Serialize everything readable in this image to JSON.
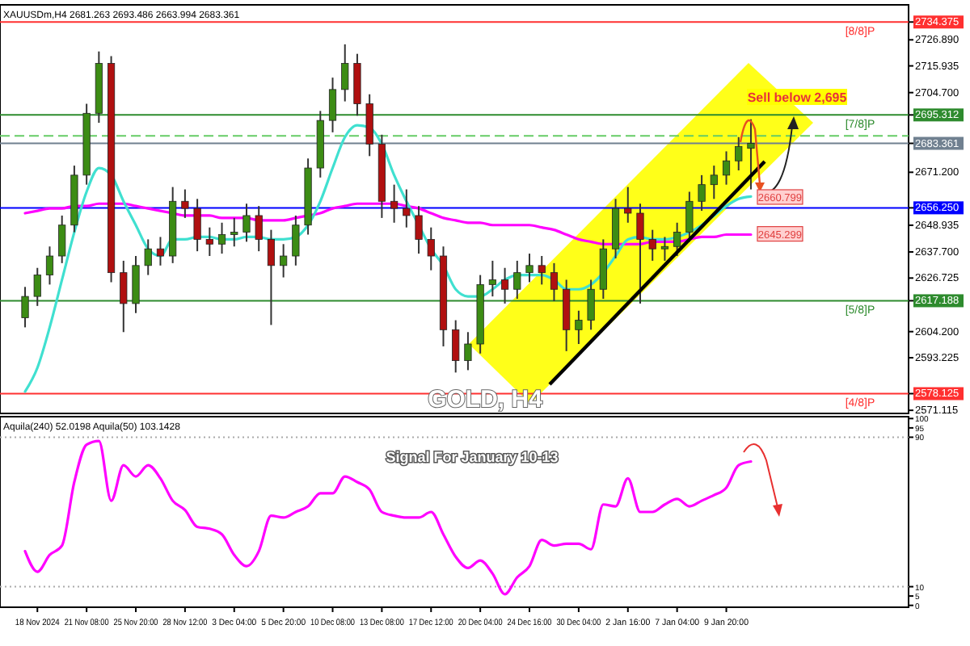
{
  "chart_data": [
    {
      "type": "candlestick",
      "title": "GOLD, H4",
      "subtitle": "Signal For January 10-13",
      "categories": [
        null,
        null,
        null,
        null,
        null,
        null,
        null,
        null,
        null,
        null,
        null,
        null,
        null,
        null,
        null,
        null,
        null,
        null,
        null,
        null,
        null,
        null,
        null,
        null,
        null,
        null,
        null,
        null,
        null,
        null,
        null,
        null,
        null,
        null,
        null,
        null,
        null,
        null,
        null,
        null,
        null,
        null,
        null,
        null,
        null,
        null,
        null,
        null,
        null,
        null,
        null,
        null,
        null,
        null,
        null,
        null,
        null,
        null,
        null,
        null
      ],
      "ohlc": [
        [
          2610,
          2623,
          2606,
          2619
        ],
        [
          2619,
          2631,
          2615,
          2628
        ],
        [
          2628,
          2640,
          2624,
          2636
        ],
        [
          2636,
          2653,
          2633,
          2649
        ],
        [
          2649,
          2674,
          2646,
          2670
        ],
        [
          2670,
          2700,
          2666,
          2696
        ],
        [
          2696,
          2722,
          2692,
          2717
        ],
        [
          2717,
          2720,
          2625,
          2629
        ],
        [
          2629,
          2634,
          2604,
          2616
        ],
        [
          2616,
          2636,
          2612,
          2632
        ],
        [
          2632,
          2643,
          2628,
          2639
        ],
        [
          2639,
          2644,
          2632,
          2636
        ],
        [
          2636,
          2665,
          2633,
          2659
        ],
        [
          2659,
          2664,
          2652,
          2656
        ],
        [
          2656,
          2660,
          2638,
          2643
        ],
        [
          2643,
          2648,
          2636,
          2641
        ],
        [
          2641,
          2650,
          2637,
          2645
        ],
        [
          2645,
          2652,
          2640,
          2646
        ],
        [
          2646,
          2658,
          2642,
          2653
        ],
        [
          2653,
          2657,
          2638,
          2643
        ],
        [
          2643,
          2647,
          2607,
          2632
        ],
        [
          2632,
          2641,
          2627,
          2636
        ],
        [
          2636,
          2653,
          2632,
          2649
        ],
        [
          2649,
          2677,
          2645,
          2673
        ],
        [
          2673,
          2697,
          2669,
          2693
        ],
        [
          2693,
          2711,
          2688,
          2706
        ],
        [
          2706,
          2725,
          2701,
          2717
        ],
        [
          2717,
          2721,
          2695,
          2700
        ],
        [
          2700,
          2704,
          2678,
          2683
        ],
        [
          2683,
          2687,
          2652,
          2659
        ],
        [
          2659,
          2666,
          2650,
          2656
        ],
        [
          2656,
          2664,
          2648,
          2653
        ],
        [
          2653,
          2657,
          2637,
          2643
        ],
        [
          2643,
          2648,
          2630,
          2636
        ],
        [
          2636,
          2640,
          2598,
          2605
        ],
        [
          2605,
          2609,
          2587,
          2592
        ],
        [
          2592,
          2604,
          2588,
          2599
        ],
        [
          2599,
          2628,
          2595,
          2624
        ],
        [
          2624,
          2634,
          2619,
          2626
        ],
        [
          2626,
          2631,
          2616,
          2622
        ],
        [
          2622,
          2634,
          2618,
          2629
        ],
        [
          2629,
          2637,
          2625,
          2632
        ],
        [
          2632,
          2636,
          2624,
          2629
        ],
        [
          2629,
          2633,
          2617,
          2622
        ],
        [
          2622,
          2626,
          2596,
          2605
        ],
        [
          2605,
          2613,
          2599,
          2609
        ],
        [
          2609,
          2626,
          2605,
          2622
        ],
        [
          2622,
          2643,
          2618,
          2639
        ],
        [
          2639,
          2660,
          2635,
          2656
        ],
        [
          2656,
          2665,
          2650,
          2654
        ],
        [
          2654,
          2658,
          2616,
          2643
        ],
        [
          2643,
          2647,
          2634,
          2639
        ],
        [
          2639,
          2644,
          2634,
          2640
        ],
        [
          2640,
          2650,
          2636,
          2646
        ],
        [
          2646,
          2663,
          2642,
          2659
        ],
        [
          2659,
          2670,
          2655,
          2666
        ],
        [
          2666,
          2674,
          2660,
          2670
        ],
        [
          2670,
          2680,
          2666,
          2676
        ],
        [
          2676,
          2686,
          2672,
          2682
        ],
        [
          2681.263,
          2693.486,
          2663.994,
          2683.361
        ]
      ],
      "series": [
        {
          "type": "line",
          "color": "#ff00ff",
          "values": [
            2654,
            2655,
            2656,
            2656,
            2657,
            2657,
            2658,
            2658,
            2658,
            2657,
            2656,
            2655,
            2654,
            2653,
            2653,
            2653,
            2652,
            2652,
            2652,
            2651,
            2651,
            2651,
            2652,
            2653,
            2654,
            2656,
            2657,
            2658,
            2658,
            2658,
            2658,
            2657,
            2656,
            2654,
            2652,
            2651,
            2650,
            2650,
            2649,
            2649,
            2649,
            2649,
            2648,
            2647,
            2645,
            2643,
            2642,
            2641,
            2641,
            2641,
            2641,
            2642,
            2642,
            2642,
            2643,
            2644,
            2644,
            2645,
            2645,
            2645
          ]
        },
        {
          "type": "line",
          "color": "#40e0d0",
          "values": [
            2579,
            2589,
            2606,
            2626,
            2646,
            2663,
            2673,
            2670,
            2659,
            2649,
            2639,
            2636,
            2643,
            2643,
            2644,
            2644,
            2643,
            2643,
            2644,
            2644,
            2643,
            2643,
            2644,
            2649,
            2659,
            2673,
            2686,
            2691,
            2690,
            2683,
            2670,
            2659,
            2649,
            2639,
            2632,
            2622,
            2619,
            2619,
            2622,
            2626,
            2628,
            2628,
            2628,
            2626,
            2622,
            2622,
            2624,
            2629,
            2636,
            2643,
            2644,
            2643,
            2643,
            2644,
            2646,
            2649,
            2653,
            2657,
            2660,
            2661
          ]
        }
      ],
      "ylim": [
        2569.8,
        2741.6
      ],
      "yticks": [
        {
          "value": 2734.375,
          "label": "2734.375"
        },
        {
          "value": 2726.89,
          "label": "2726.890"
        },
        {
          "value": 2715.935,
          "label": "2715.935"
        },
        {
          "value": 2704.7,
          "label": "2704.700"
        },
        {
          "value": 2695.312,
          "label": "2695.312"
        },
        {
          "value": 2683.361,
          "label": "2683.361"
        },
        {
          "value": 2671.2,
          "label": "2671.200"
        },
        {
          "value": 2656.25,
          "label": "2656.250"
        },
        {
          "value": 2648.935,
          "label": "2648.935"
        },
        {
          "value": 2637.7,
          "label": "2637.700"
        },
        {
          "value": 2626.725,
          "label": "2626.725"
        },
        {
          "value": 2617.188,
          "label": "2617.188"
        },
        {
          "value": 2604.2,
          "label": "2604.200"
        },
        {
          "value": 2593.225,
          "label": "2593.225"
        },
        {
          "value": 2578.125,
          "label": "2578.125"
        },
        {
          "value": 2571.115,
          "label": "2571.115"
        }
      ],
      "ref_lines": [
        {
          "axis": "y",
          "value": 2734.375,
          "label": "[8/8]P",
          "color": "#ff3030"
        },
        {
          "axis": "y",
          "value": 2695.312,
          "label": "[7/8]P",
          "color": "#2e8b2e"
        },
        {
          "axis": "y",
          "value": 2686.5,
          "color": "#66cc66",
          "line_style": "dashed"
        },
        {
          "axis": "y",
          "value": 2683.361,
          "color": "#708090"
        },
        {
          "axis": "y",
          "value": 2656.25,
          "color": "#0000ff"
        },
        {
          "axis": "y",
          "value": 2617.188,
          "label": "[5/8]P",
          "color": "#2e8b2e"
        },
        {
          "axis": "y",
          "value": 2578.125,
          "label": "[4/8]P",
          "color": "#ff3030"
        }
      ],
      "annotations": [
        "XAUUSDm,H4 2681.263 2693.486 2663.994 2683.361",
        "Sell below 2,695",
        {
          "text": "2660.799",
          "y": 2660.799
        },
        {
          "text": "2645.299",
          "y": 2645.299
        }
      ],
      "tick_labels": "y",
      "grid": false
    },
    {
      "type": "line",
      "categories": [
        null,
        "18 Nov 2024",
        null,
        null,
        null,
        "21 Nov 08:00",
        null,
        null,
        null,
        "25 Nov 20:00",
        null,
        null,
        null,
        "28 Nov 12:00",
        null,
        null,
        null,
        "3 Dec 04:00",
        null,
        null,
        null,
        "5 Dec 20:00",
        null,
        null,
        null,
        "10 Dec 08:00",
        null,
        null,
        null,
        "13 Dec 08:00",
        null,
        null,
        null,
        "17 Dec 12:00",
        null,
        null,
        null,
        "20 Dec 04:00",
        null,
        null,
        null,
        "24 Dec 16:00",
        null,
        null,
        null,
        "30 Dec 04:00",
        null,
        null,
        null,
        "2 Jan 16:00",
        null,
        null,
        null,
        "7 Jan 04:00",
        null,
        null,
        null,
        "9 Jan 20:00",
        null,
        null
      ],
      "series": [
        {
          "color": "#ff00ff",
          "values": [
            29,
            18,
            27,
            32,
            66,
            86,
            88,
            56,
            75,
            69,
            75,
            68,
            56,
            51,
            42,
            41,
            38,
            27,
            21,
            29,
            48,
            47,
            50,
            53,
            60,
            60,
            69,
            66,
            62,
            50,
            48,
            47,
            47,
            50,
            38,
            26,
            20,
            24,
            17,
            6,
            15,
            21,
            35,
            32,
            33,
            33,
            30,
            54,
            53,
            68,
            50,
            50,
            54,
            57,
            53,
            56,
            59,
            63,
            75,
            77
          ]
        }
      ],
      "ylim": [
        -1,
        101
      ],
      "yticks": [
        0,
        5,
        10,
        90,
        95,
        100
      ],
      "ref_lines": [
        {
          "axis": "y",
          "value": 10,
          "color": "#aaaaaa",
          "line_style": "dotted"
        },
        {
          "axis": "y",
          "value": 90,
          "color": "#aaaaaa",
          "line_style": "dotted"
        }
      ],
      "annotations": [
        "Aquila(240) 52.0198 Aquila(50) 103.1428"
      ],
      "grid": false
    }
  ]
}
